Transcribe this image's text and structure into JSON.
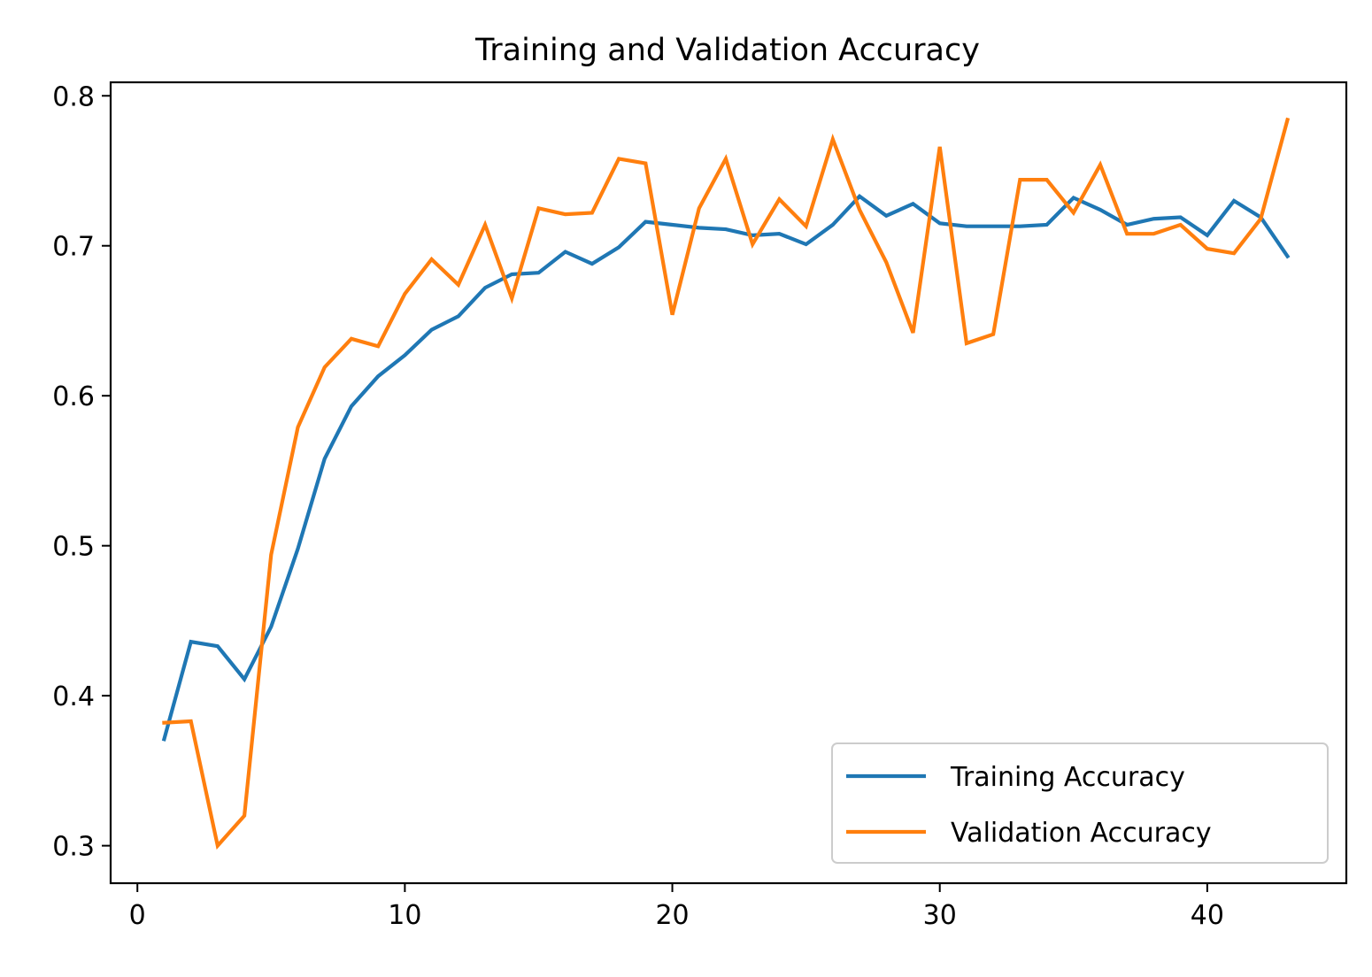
{
  "chart_data": {
    "type": "line",
    "title": "Training and Validation Accuracy",
    "xlabel": "",
    "ylabel": "",
    "xlim": [
      -1,
      45.2
    ],
    "ylim": [
      0.275,
      0.809
    ],
    "xticks": [
      0,
      10,
      20,
      30,
      40
    ],
    "yticks": [
      0.3,
      0.4,
      0.5,
      0.6,
      0.7,
      0.8
    ],
    "xtick_labels": [
      "0",
      "10",
      "20",
      "30",
      "40"
    ],
    "ytick_labels": [
      "0.3",
      "0.4",
      "0.5",
      "0.6",
      "0.7",
      "0.8"
    ],
    "grid": false,
    "legend_position": "lower-right",
    "x": [
      1,
      2,
      3,
      4,
      5,
      6,
      7,
      8,
      9,
      10,
      11,
      12,
      13,
      14,
      15,
      16,
      17,
      18,
      19,
      20,
      21,
      22,
      23,
      24,
      25,
      26,
      27,
      28,
      29,
      30,
      31,
      32,
      33,
      34,
      35,
      36,
      37,
      38,
      39,
      40,
      41,
      42,
      43
    ],
    "series": [
      {
        "name": "Training Accuracy",
        "color": "#1f77b4",
        "values": [
          0.371,
          0.436,
          0.433,
          0.411,
          0.446,
          0.498,
          0.558,
          0.593,
          0.613,
          0.627,
          0.644,
          0.653,
          0.672,
          0.681,
          0.682,
          0.696,
          0.688,
          0.699,
          0.716,
          0.714,
          0.712,
          0.711,
          0.707,
          0.708,
          0.701,
          0.714,
          0.733,
          0.72,
          0.728,
          0.715,
          0.713,
          0.713,
          0.713,
          0.714,
          0.732,
          0.724,
          0.714,
          0.718,
          0.719,
          0.707,
          0.73,
          0.719,
          0.693
        ]
      },
      {
        "name": "Validation Accuracy",
        "color": "#ff7f0e",
        "values": [
          0.382,
          0.383,
          0.3,
          0.32,
          0.494,
          0.579,
          0.619,
          0.638,
          0.633,
          0.668,
          0.691,
          0.674,
          0.714,
          0.665,
          0.725,
          0.721,
          0.722,
          0.758,
          0.755,
          0.654,
          0.725,
          0.758,
          0.701,
          0.731,
          0.713,
          0.771,
          0.724,
          0.689,
          0.642,
          0.766,
          0.635,
          0.641,
          0.744,
          0.744,
          0.722,
          0.754,
          0.708,
          0.708,
          0.714,
          0.698,
          0.695,
          0.718,
          0.784
        ]
      }
    ]
  }
}
